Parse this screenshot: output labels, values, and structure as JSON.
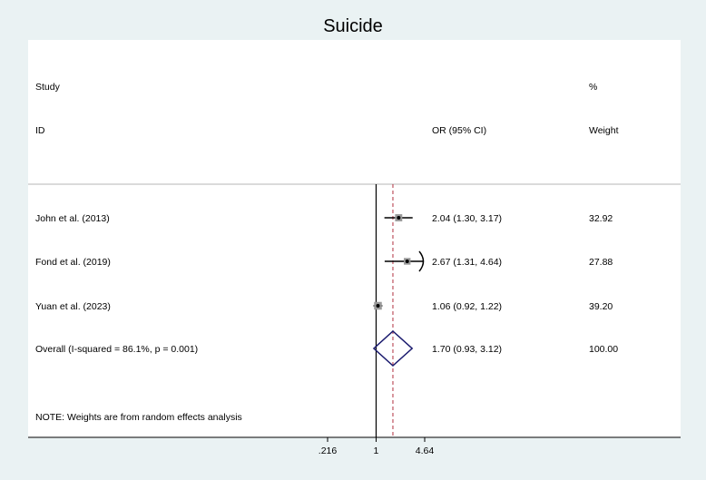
{
  "chart_data": {
    "type": "forest",
    "title": "Suicide",
    "headers": {
      "study_line1": "Study",
      "study_line2": "ID",
      "effect": "OR (95% CI)",
      "weight_line1": "%",
      "weight_line2": "Weight"
    },
    "rows": [
      {
        "label": "John et al. (2013)",
        "or": 2.04,
        "lower": 1.3,
        "upper": 3.17,
        "ci_text": "2.04 (1.30, 3.17)",
        "weight": "32.92"
      },
      {
        "label": "Fond et al. (2019)",
        "or": 2.67,
        "lower": 1.31,
        "upper": 4.64,
        "ci_text": "2.67 (1.31, 4.64)",
        "weight": "27.88",
        "clipped_upper": true
      },
      {
        "label": "Yuan et al. (2023)",
        "or": 1.06,
        "lower": 0.92,
        "upper": 1.22,
        "ci_text": "1.06 (0.92, 1.22)",
        "weight": "39.20"
      }
    ],
    "overall": {
      "label": "Overall  (I-squared = 86.1%, p = 0.001)",
      "or": 1.7,
      "lower": 0.93,
      "upper": 3.12,
      "ci_text": "1.70 (0.93, 3.12)",
      "weight": "100.00"
    },
    "note": "NOTE: Weights are from random effects analysis",
    "x_scale": "log",
    "x_ticks": [
      {
        "value": 0.216,
        "label": ".216"
      },
      {
        "value": 1,
        "label": "1"
      },
      {
        "value": 4.64,
        "label": "4.64"
      }
    ],
    "x_range": [
      0.216,
      4.64
    ],
    "null_line": 1,
    "colors": {
      "background": "#eaf2f3",
      "plot": "#ffffff",
      "diamond": "#1a1a6e",
      "overall_line": "#b03040",
      "axis": "#000000"
    }
  }
}
